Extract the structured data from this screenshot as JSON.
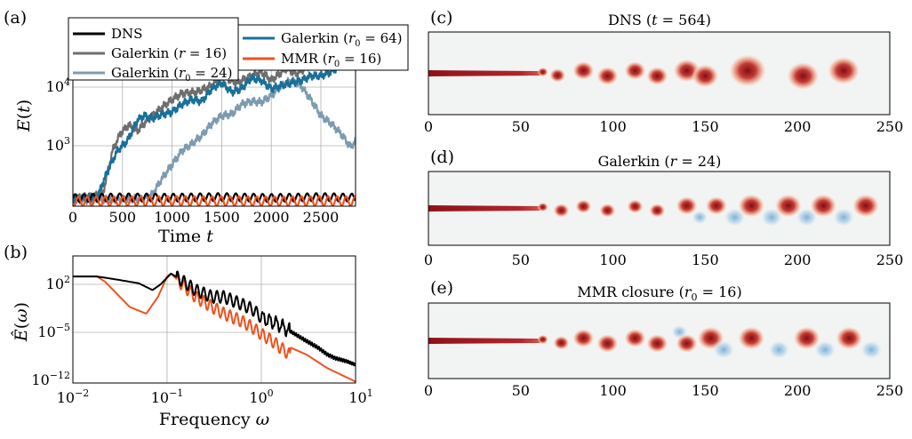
{
  "colors": {
    "dns": "#000000",
    "galerkin_r16": "#6e6e6e",
    "galerkin_r0_24": "#7d9bb0",
    "galerkin_r0_64": "#19709a",
    "mmr_r0_16": "#f0521d",
    "grid": "#b0b0b0",
    "field_bg": "#f2f4f4",
    "vortex_positive": "#a3141c",
    "vortex_negative": "#a9c8de"
  },
  "chart_data": [
    {
      "panel": "(a)",
      "type": "line",
      "xlabel": "Time t",
      "ylabel": "E(t)",
      "xlim": [
        0,
        2850
      ],
      "ylim_log10": [
        2.25,
        4.55
      ],
      "yscale": "log",
      "xticks": [
        "0",
        "500",
        "1000",
        "1500",
        "2000",
        "2500"
      ],
      "yticks": [
        "10^3",
        "10^4"
      ],
      "grid": true,
      "legend_placement": "top",
      "series": [
        {
          "name": "DNS",
          "legend_label": "DNS",
          "oscillating": true,
          "amplitude_log10": 0.05,
          "x": [
            0,
            500,
            1000,
            1500,
            2000,
            2500,
            2850
          ],
          "y": [
            225,
            230,
            228,
            232,
            226,
            232,
            228
          ]
        },
        {
          "name": "Galerkin (r = 16)",
          "legend_label": "Galerkin (r = 16)",
          "x": [
            0,
            300,
            400,
            480,
            560,
            650,
            750,
            900,
            1000,
            1100,
            1250,
            1400,
            1500,
            1650,
            1800,
            1900,
            2000,
            2150,
            2250,
            2400,
            2500,
            2650,
            2750,
            2850
          ],
          "y": [
            220,
            250,
            900,
            1500,
            1900,
            1600,
            2200,
            3200,
            4000,
            4800,
            5000,
            6000,
            8000,
            6500,
            8000,
            9000,
            7000,
            10000,
            8500,
            11000,
            12000,
            16000,
            18000,
            25000
          ]
        },
        {
          "name": "Galerkin (r0 = 24)",
          "legend_label": "Galerkin (r0 = 24)",
          "x": [
            0,
            600,
            700,
            800,
            900,
            1000,
            1100,
            1200,
            1300,
            1400,
            1500,
            1600,
            1700,
            1800,
            1900,
            2000,
            2100,
            2200,
            2300,
            2400,
            2500,
            2600,
            2700,
            2800,
            2850
          ],
          "y": [
            210,
            220,
            220,
            250,
            400,
            600,
            900,
            1100,
            1400,
            2000,
            2500,
            2600,
            3500,
            3800,
            3700,
            4500,
            6000,
            7000,
            6000,
            4000,
            2500,
            2000,
            1500,
            1000,
            1200
          ]
        },
        {
          "name": "Galerkin (r0 = 64)",
          "legend_label": "Galerkin (r0 = 64)",
          "x": [
            0,
            250,
            300,
            380,
            450,
            550,
            650,
            720,
            800,
            900,
            1000,
            1100,
            1200,
            1300,
            1400,
            1500,
            1600,
            1700,
            1800,
            1900,
            2000,
            2100,
            2200,
            2300,
            2400,
            2500,
            2600,
            2700,
            2800,
            2850
          ],
          "y": [
            220,
            230,
            350,
            600,
            900,
            1200,
            2200,
            2500,
            2300,
            2600,
            2800,
            3500,
            4000,
            3800,
            5500,
            6500,
            5000,
            5500,
            7500,
            7000,
            5500,
            6000,
            6500,
            7000,
            8000,
            8000,
            9000,
            11000,
            11000,
            12500
          ]
        },
        {
          "name": "MMR (r0 = 16)",
          "legend_label": "MMR (r0 = 16)",
          "oscillating": true,
          "amplitude_log10": 0.06,
          "x": [
            0,
            500,
            1000,
            1500,
            2000,
            2500,
            2850
          ],
          "y": [
            205,
            205,
            208,
            206,
            205,
            207,
            206
          ]
        }
      ]
    },
    {
      "panel": "(b)",
      "type": "line",
      "xlabel": "Frequency ω",
      "ylabel": "Ê(ω)",
      "xscale": "log",
      "yscale": "log",
      "xlim_log10": [
        -2,
        1
      ],
      "ylim_log10": [
        -12.2,
        6.5
      ],
      "xticks": [
        "10^-2",
        "10^-1",
        "10^0",
        "10^1"
      ],
      "yticks": [
        "10^2",
        "10^-5",
        "10^-12"
      ],
      "grid": true,
      "series": [
        {
          "name": "DNS",
          "x": [
            0.01,
            0.018,
            0.03,
            0.05,
            0.07,
            0.085,
            0.1,
            0.11,
            0.14,
            0.2,
            0.3,
            0.4,
            0.6,
            0.8,
            1.0,
            1.2,
            1.5,
            2.0,
            3.0,
            4.0,
            5.0,
            6.0,
            8.0,
            10.0
          ],
          "y": [
            3000.0,
            3000.0,
            1000.0,
            300.0,
            30,
            200,
            2000.0,
            8000.0,
            1000.0,
            30,
            3,
            3,
            0.3,
            0.05,
            0.003,
            0.001,
            0.0003,
            3e-05,
            1e-06,
            1e-07,
            1e-08,
            3e-09,
            1e-09,
            3e-10
          ]
        },
        {
          "name": "MMR (r0 = 16)",
          "x": [
            0.01,
            0.018,
            0.022,
            0.04,
            0.06,
            0.08,
            0.1,
            0.11,
            0.14,
            0.2,
            0.3,
            0.4,
            0.6,
            0.8,
            1.0,
            1.3,
            1.6,
            2.0,
            2.05,
            3.0,
            5.0,
            10.0
          ],
          "y": [
            3000.0,
            3000.0,
            500.0,
            0.1,
            0.01,
            3,
            3000.0,
            8000.0,
            300.0,
            3,
            0.1,
            0.01,
            0.001,
            0.0001,
            1e-05,
            1e-06,
            1e-07,
            1e-08,
            1e-07,
            1e-08,
            1e-10,
            1e-12
          ]
        }
      ]
    },
    {
      "panel": "(c)",
      "type": "heatmap",
      "title": "DNS (t = 564)",
      "xlim": [
        0,
        250
      ],
      "xticks": [
        "0",
        "50",
        "100",
        "150",
        "200",
        "250"
      ],
      "vortices": [
        {
          "x": 62,
          "sign": 1,
          "size": 2
        },
        {
          "x": 70,
          "sign": 1,
          "size": 3
        },
        {
          "x": 84,
          "sign": 1,
          "size": 4
        },
        {
          "x": 97,
          "sign": 1,
          "size": 4
        },
        {
          "x": 112,
          "sign": 1,
          "size": 4
        },
        {
          "x": 124,
          "sign": 1,
          "size": 4
        },
        {
          "x": 140,
          "sign": 1,
          "size": 5
        },
        {
          "x": 150,
          "sign": 1,
          "size": 5
        },
        {
          "x": 173,
          "sign": 1,
          "size": 7
        },
        {
          "x": 203,
          "sign": 1,
          "size": 6
        },
        {
          "x": 225,
          "sign": 1,
          "size": 6
        }
      ]
    },
    {
      "panel": "(d)",
      "type": "heatmap",
      "title": "Galerkin (r = 24)",
      "xlim": [
        0,
        250
      ],
      "xticks": [
        "0",
        "50",
        "100",
        "150",
        "200",
        "250"
      ],
      "vortices": [
        {
          "x": 62,
          "sign": 1,
          "size": 2
        },
        {
          "x": 72,
          "sign": 1,
          "size": 3
        },
        {
          "x": 84,
          "sign": 1,
          "size": 3
        },
        {
          "x": 97,
          "sign": 1,
          "size": 3
        },
        {
          "x": 112,
          "sign": 1,
          "size": 3
        },
        {
          "x": 124,
          "sign": 1,
          "size": 3
        },
        {
          "x": 140,
          "sign": 1,
          "size": 4
        },
        {
          "x": 147,
          "sign": -1,
          "size": 3
        },
        {
          "x": 156,
          "sign": 1,
          "size": 4
        },
        {
          "x": 166,
          "sign": -1,
          "size": 4
        },
        {
          "x": 175,
          "sign": 1,
          "size": 5
        },
        {
          "x": 186,
          "sign": -1,
          "size": 4
        },
        {
          "x": 195,
          "sign": 1,
          "size": 5
        },
        {
          "x": 205,
          "sign": -1,
          "size": 4
        },
        {
          "x": 214,
          "sign": 1,
          "size": 5
        },
        {
          "x": 225,
          "sign": -1,
          "size": 4
        },
        {
          "x": 237,
          "sign": 1,
          "size": 5
        }
      ]
    },
    {
      "panel": "(e)",
      "type": "heatmap",
      "title": "MMR closure (r0 = 16)",
      "xlim": [
        0,
        250
      ],
      "xticks": [
        "0",
        "50",
        "100",
        "150",
        "200",
        "250"
      ],
      "vortices": [
        {
          "x": 62,
          "sign": 1,
          "size": 2
        },
        {
          "x": 72,
          "sign": 1,
          "size": 3
        },
        {
          "x": 84,
          "sign": 1,
          "size": 4
        },
        {
          "x": 97,
          "sign": 1,
          "size": 4
        },
        {
          "x": 112,
          "sign": 1,
          "size": 4
        },
        {
          "x": 124,
          "sign": 1,
          "size": 4
        },
        {
          "x": 136,
          "sign": -1,
          "size": 3
        },
        {
          "x": 140,
          "sign": 1,
          "size": 4
        },
        {
          "x": 153,
          "sign": 1,
          "size": 5
        },
        {
          "x": 160,
          "sign": -1,
          "size": 4
        },
        {
          "x": 175,
          "sign": 1,
          "size": 5
        },
        {
          "x": 190,
          "sign": -1,
          "size": 4
        },
        {
          "x": 205,
          "sign": 1,
          "size": 5
        },
        {
          "x": 215,
          "sign": -1,
          "size": 4
        },
        {
          "x": 228,
          "sign": 1,
          "size": 5
        },
        {
          "x": 240,
          "sign": -1,
          "size": 4
        }
      ]
    }
  ]
}
